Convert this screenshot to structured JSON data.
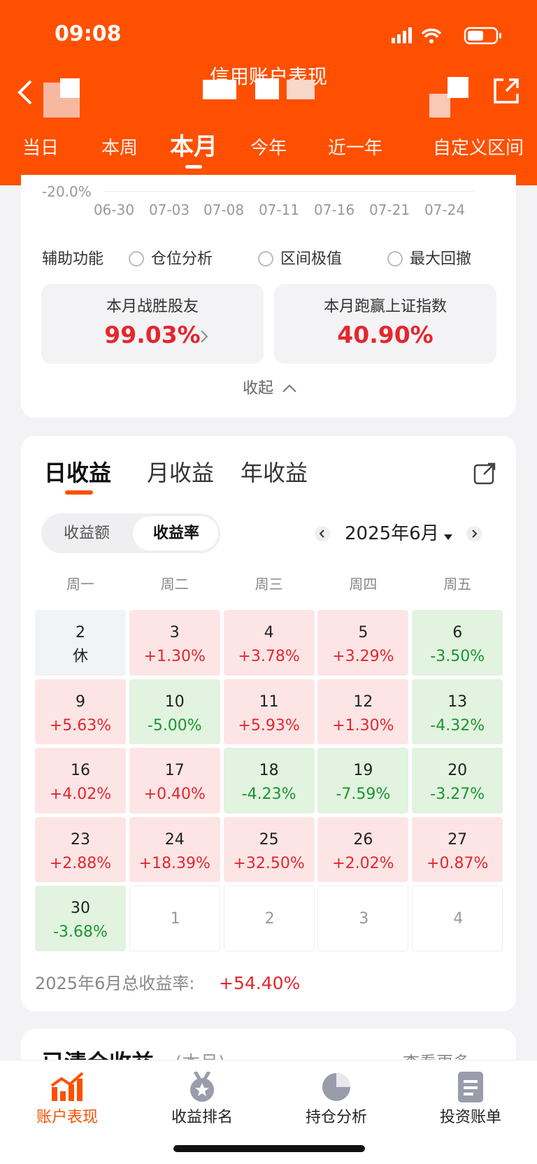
{
  "status_bar": {
    "time": "09:08"
  },
  "nav": {
    "title": "信用账户表现"
  },
  "period_tabs": {
    "items": [
      "当日",
      "本周",
      "本月",
      "今年",
      "近一年",
      "自定义区间"
    ],
    "active": 2
  },
  "chart": {
    "y_label": "-20.0%",
    "x_labels": [
      "06-30",
      "07-03",
      "07-08",
      "07-11",
      "07-16",
      "07-21",
      "07-24"
    ]
  },
  "aux": {
    "label": "辅助功能",
    "options": [
      "仓位分析",
      "区间极值",
      "最大回撤"
    ]
  },
  "stats": [
    {
      "label": "本月战胜股友",
      "value": "99.03%"
    },
    {
      "label": "本月跑赢上证指数",
      "value": "40.90%"
    }
  ],
  "collapse": "收起",
  "returns": {
    "tabs": [
      "日收益",
      "月收益",
      "年收益"
    ],
    "active_tab": 0,
    "toggle": [
      "收益额",
      "收益率"
    ],
    "active_toggle": 1,
    "month": "2025年6月",
    "weekdays": [
      "周一",
      "周二",
      "周三",
      "周四",
      "周五"
    ],
    "cells": [
      {
        "day": "2",
        "value": "休"
      },
      {
        "day": "3",
        "value": "+1.30%"
      },
      {
        "day": "4",
        "value": "+3.78%"
      },
      {
        "day": "5",
        "value": "+3.29%"
      },
      {
        "day": "6",
        "value": "-3.50%"
      },
      {
        "day": "9",
        "value": "+5.63%"
      },
      {
        "day": "10",
        "value": "-5.00%"
      },
      {
        "day": "11",
        "value": "+5.93%"
      },
      {
        "day": "12",
        "value": "+1.30%"
      },
      {
        "day": "13",
        "value": "-4.32%"
      },
      {
        "day": "16",
        "value": "+4.02%"
      },
      {
        "day": "17",
        "value": "+0.40%"
      },
      {
        "day": "18",
        "value": "-4.23%"
      },
      {
        "day": "19",
        "value": "-7.59%"
      },
      {
        "day": "20",
        "value": "-3.27%"
      },
      {
        "day": "23",
        "value": "+2.88%"
      },
      {
        "day": "24",
        "value": "+18.39%"
      },
      {
        "day": "25",
        "value": "+32.50%"
      },
      {
        "day": "26",
        "value": "+2.02%"
      },
      {
        "day": "27",
        "value": "+0.87%"
      },
      {
        "day": "30",
        "value": "-3.68%"
      },
      {
        "day": "1"
      },
      {
        "day": "2"
      },
      {
        "day": "3"
      },
      {
        "day": "4"
      }
    ],
    "total_label": "2025年6月总收益率:",
    "total_value": "+54.40%"
  },
  "cleared": {
    "title": "已清仓收益",
    "sub": "(本月)",
    "more": "查看更多"
  },
  "bottom_nav": {
    "items": [
      "账户表现",
      "收益排名",
      "持仓分析",
      "投资账单"
    ],
    "active": 0
  }
}
